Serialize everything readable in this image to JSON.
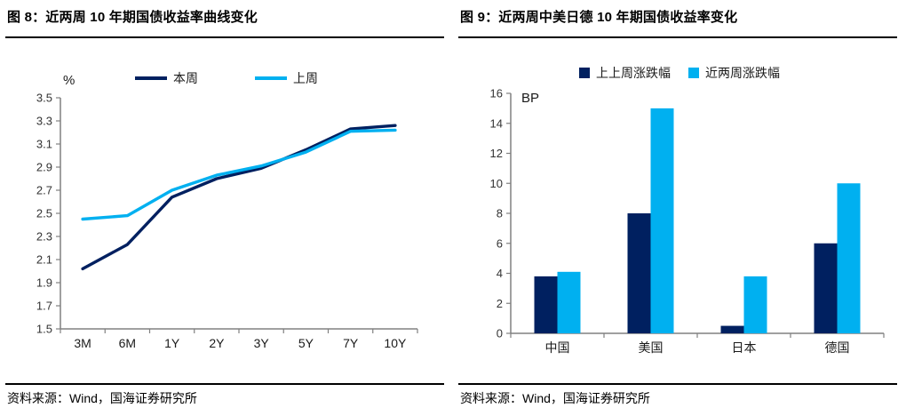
{
  "panels": [
    {
      "title": "图 8：近两周 10 年期国债收益率曲线变化",
      "source": "资料来源：Wind，国海证券研究所"
    },
    {
      "title": "图 9：近两周中美日德 10 年期国债收益率变化",
      "source": "资料来源：Wind，国海证券研究所"
    }
  ],
  "colors": {
    "dark_blue": "#002060",
    "light_blue": "#00B0F0",
    "axis_gray": "#808080",
    "tick_text": "#333333",
    "title_text": "#000000"
  },
  "chart_data": [
    {
      "type": "line",
      "title": "近两周 10 年期国债收益率曲线变化",
      "unit": "%",
      "xlabel": "",
      "ylabel": "%",
      "categories": [
        "3M",
        "6M",
        "1Y",
        "2Y",
        "3Y",
        "5Y",
        "7Y",
        "10Y"
      ],
      "series": [
        {
          "name": "本周",
          "color": "#002060",
          "values": [
            2.02,
            2.23,
            2.64,
            2.8,
            2.89,
            3.05,
            3.23,
            3.26
          ]
        },
        {
          "name": "上周",
          "color": "#00B0F0",
          "values": [
            2.45,
            2.48,
            2.7,
            2.83,
            2.91,
            3.03,
            3.21,
            3.22
          ]
        }
      ],
      "ylim": [
        1.5,
        3.5
      ],
      "ytick_step": 0.2,
      "ytick_decimals": 1,
      "grid": false,
      "legend_position": "top"
    },
    {
      "type": "bar",
      "title": "近两周中美日德 10 年期国债收益率变化",
      "unit": "BP",
      "xlabel": "",
      "ylabel": "BP",
      "categories": [
        "中国",
        "美国",
        "日本",
        "德国"
      ],
      "series": [
        {
          "name": "上上周涨跌幅",
          "color": "#002060",
          "values": [
            3.8,
            8.0,
            0.5,
            6.0
          ]
        },
        {
          "name": "近两周涨跌幅",
          "color": "#00B0F0",
          "values": [
            4.1,
            15.0,
            3.8,
            10.0
          ]
        }
      ],
      "ylim": [
        0,
        16
      ],
      "ytick_step": 2,
      "ytick_decimals": 0,
      "grid": false,
      "legend_position": "top"
    }
  ]
}
